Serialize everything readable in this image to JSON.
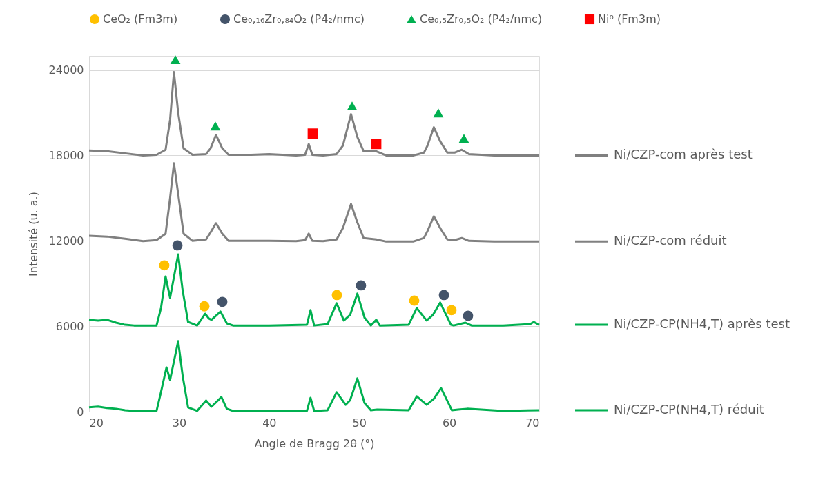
{
  "chart_data": {
    "type": "line",
    "xlabel": "Angle de Bragg 2θ (°)",
    "ylabel": "Intensité (u. a.)",
    "xlim": [
      20,
      70
    ],
    "xticks": [
      20,
      30,
      40,
      50,
      60,
      70
    ],
    "ylim": [
      0,
      25000
    ],
    "yticks": [
      0,
      6000,
      12000,
      18000,
      24000
    ],
    "grid": "y",
    "legend": "top",
    "line_style": "solid",
    "series": [
      {
        "name": "Ni/CZP-com après test",
        "color": "#808080",
        "x": [
          20,
          22,
          24,
          26,
          27.5,
          28.5,
          29.0,
          29.43,
          29.9,
          30.5,
          31.5,
          33.0,
          33.5,
          34.1,
          34.8,
          35.5,
          38,
          40,
          43,
          44.0,
          44.4,
          44.8,
          46,
          47.5,
          48.2,
          49.1,
          49.8,
          50.5,
          51.9,
          53,
          56,
          57.2,
          57.6,
          58.3,
          59.0,
          59.8,
          60.6,
          61.4,
          62.2,
          65,
          70
        ],
        "values": [
          18350,
          18300,
          18150,
          18000,
          18050,
          18400,
          20500,
          23860,
          21000,
          18500,
          18050,
          18100,
          18500,
          19450,
          18500,
          18050,
          18050,
          18100,
          18000,
          18050,
          18800,
          18050,
          18000,
          18100,
          18700,
          20900,
          19300,
          18300,
          18300,
          18000,
          18000,
          18200,
          18700,
          19980,
          19000,
          18200,
          18200,
          18400,
          18100,
          18000,
          18000
        ]
      },
      {
        "name": "Ni/CZP-com réduit",
        "color": "#808080",
        "x": [
          20,
          22,
          24,
          26,
          27.5,
          28.5,
          29.0,
          29.43,
          29.9,
          30.5,
          31.5,
          33.0,
          33.5,
          34.1,
          34.8,
          35.5,
          38,
          40,
          43,
          44.0,
          44.4,
          44.8,
          46,
          47.5,
          48.2,
          49.1,
          49.8,
          50.5,
          51.9,
          53,
          56,
          57.2,
          57.6,
          58.3,
          59.0,
          59.8,
          60.6,
          61.4,
          62.2,
          65,
          70
        ],
        "values": [
          12350,
          12300,
          12150,
          11980,
          12050,
          12500,
          15000,
          17450,
          15300,
          12500,
          12000,
          12100,
          12600,
          13240,
          12500,
          12000,
          12000,
          12000,
          11980,
          12050,
          12510,
          12000,
          11980,
          12100,
          12900,
          14590,
          13300,
          12200,
          12100,
          11950,
          11950,
          12200,
          12700,
          13720,
          12900,
          12100,
          12050,
          12200,
          12000,
          11950,
          11950
        ]
      },
      {
        "name": "Ni/CZP-CP(NH4,T) après test",
        "color": "#00b050",
        "x": [
          20,
          21,
          22,
          23,
          24,
          25,
          27.5,
          28.0,
          28.5,
          29.0,
          29.9,
          30.4,
          31.0,
          32.0,
          32.9,
          33.3,
          33.6,
          34.6,
          35.3,
          36,
          40,
          44.2,
          44.6,
          45,
          46.5,
          47.5,
          48.3,
          49.0,
          49.8,
          50.6,
          51.3,
          51.9,
          52.3,
          55.5,
          56.4,
          57.5,
          58.2,
          59.0,
          60.2,
          60.5,
          61.8,
          62.5,
          66,
          69.0,
          69.4,
          70
        ],
        "values": [
          6450,
          6400,
          6450,
          6250,
          6100,
          6050,
          6050,
          7300,
          9500,
          8000,
          11050,
          8500,
          6300,
          6050,
          6880,
          6550,
          6450,
          7030,
          6200,
          6050,
          6050,
          6100,
          7130,
          6050,
          6150,
          7610,
          6400,
          6800,
          8290,
          6600,
          6050,
          6450,
          6050,
          6100,
          7270,
          6400,
          6800,
          7660,
          6100,
          6050,
          6250,
          6050,
          6050,
          6150,
          6300,
          6100
        ]
      },
      {
        "name": "Ni/CZP-CP(NH4,T) réduit",
        "color": "#00b050",
        "x": [
          20,
          21,
          22,
          23,
          24,
          25,
          27.5,
          28.0,
          28.6,
          29.0,
          29.9,
          30.4,
          31.0,
          32.0,
          33.0,
          33.6,
          34.7,
          35.3,
          36,
          40,
          44.2,
          44.6,
          45,
          46.5,
          47.5,
          48.5,
          49.0,
          49.8,
          50.6,
          51.3,
          52,
          55.5,
          56.4,
          57.5,
          58.3,
          59.1,
          60.3,
          61,
          62,
          66,
          70
        ],
        "values": [
          300,
          350,
          250,
          200,
          100,
          50,
          50,
          1400,
          3100,
          2230,
          4950,
          2500,
          300,
          50,
          780,
          340,
          1020,
          200,
          50,
          50,
          50,
          970,
          50,
          100,
          1360,
          480,
          800,
          2330,
          600,
          100,
          150,
          100,
          1070,
          480,
          900,
          1650,
          100,
          150,
          200,
          50,
          100
        ]
      },
      {
        "name": "CeO₂ (Fm3m)",
        "type": "scatter",
        "marker": "circle",
        "color": "#ffc000",
        "x": [
          28.36,
          32.81,
          47.53,
          56.12,
          60.26
        ],
        "values": [
          10280,
          7400,
          8190,
          7800,
          7130
        ]
      },
      {
        "name": "Ce₀,₁₆Zr₀,₈₄O₂ (P4₂/nmc)",
        "type": "scatter",
        "marker": "circle",
        "color": "#44546a",
        "x": [
          29.82,
          34.8,
          50.21,
          59.42,
          62.1
        ],
        "values": [
          11680,
          7710,
          8870,
          8190,
          6740
        ]
      },
      {
        "name": "Ce₀,₅Zr₀,₅O₂ (P4₂/nmc)",
        "type": "scatter",
        "marker": "triangle",
        "color": "#00b050",
        "x": [
          29.59,
          34.03,
          49.22,
          58.8,
          61.64
        ],
        "values": [
          24730,
          20070,
          21480,
          20990,
          19200
        ]
      },
      {
        "name": "Ni⁰ (Fm3m)",
        "type": "scatter",
        "marker": "square",
        "color": "#ff0000",
        "x": [
          44.85,
          51.9
        ],
        "values": [
          19540,
          18810
        ]
      }
    ]
  }
}
